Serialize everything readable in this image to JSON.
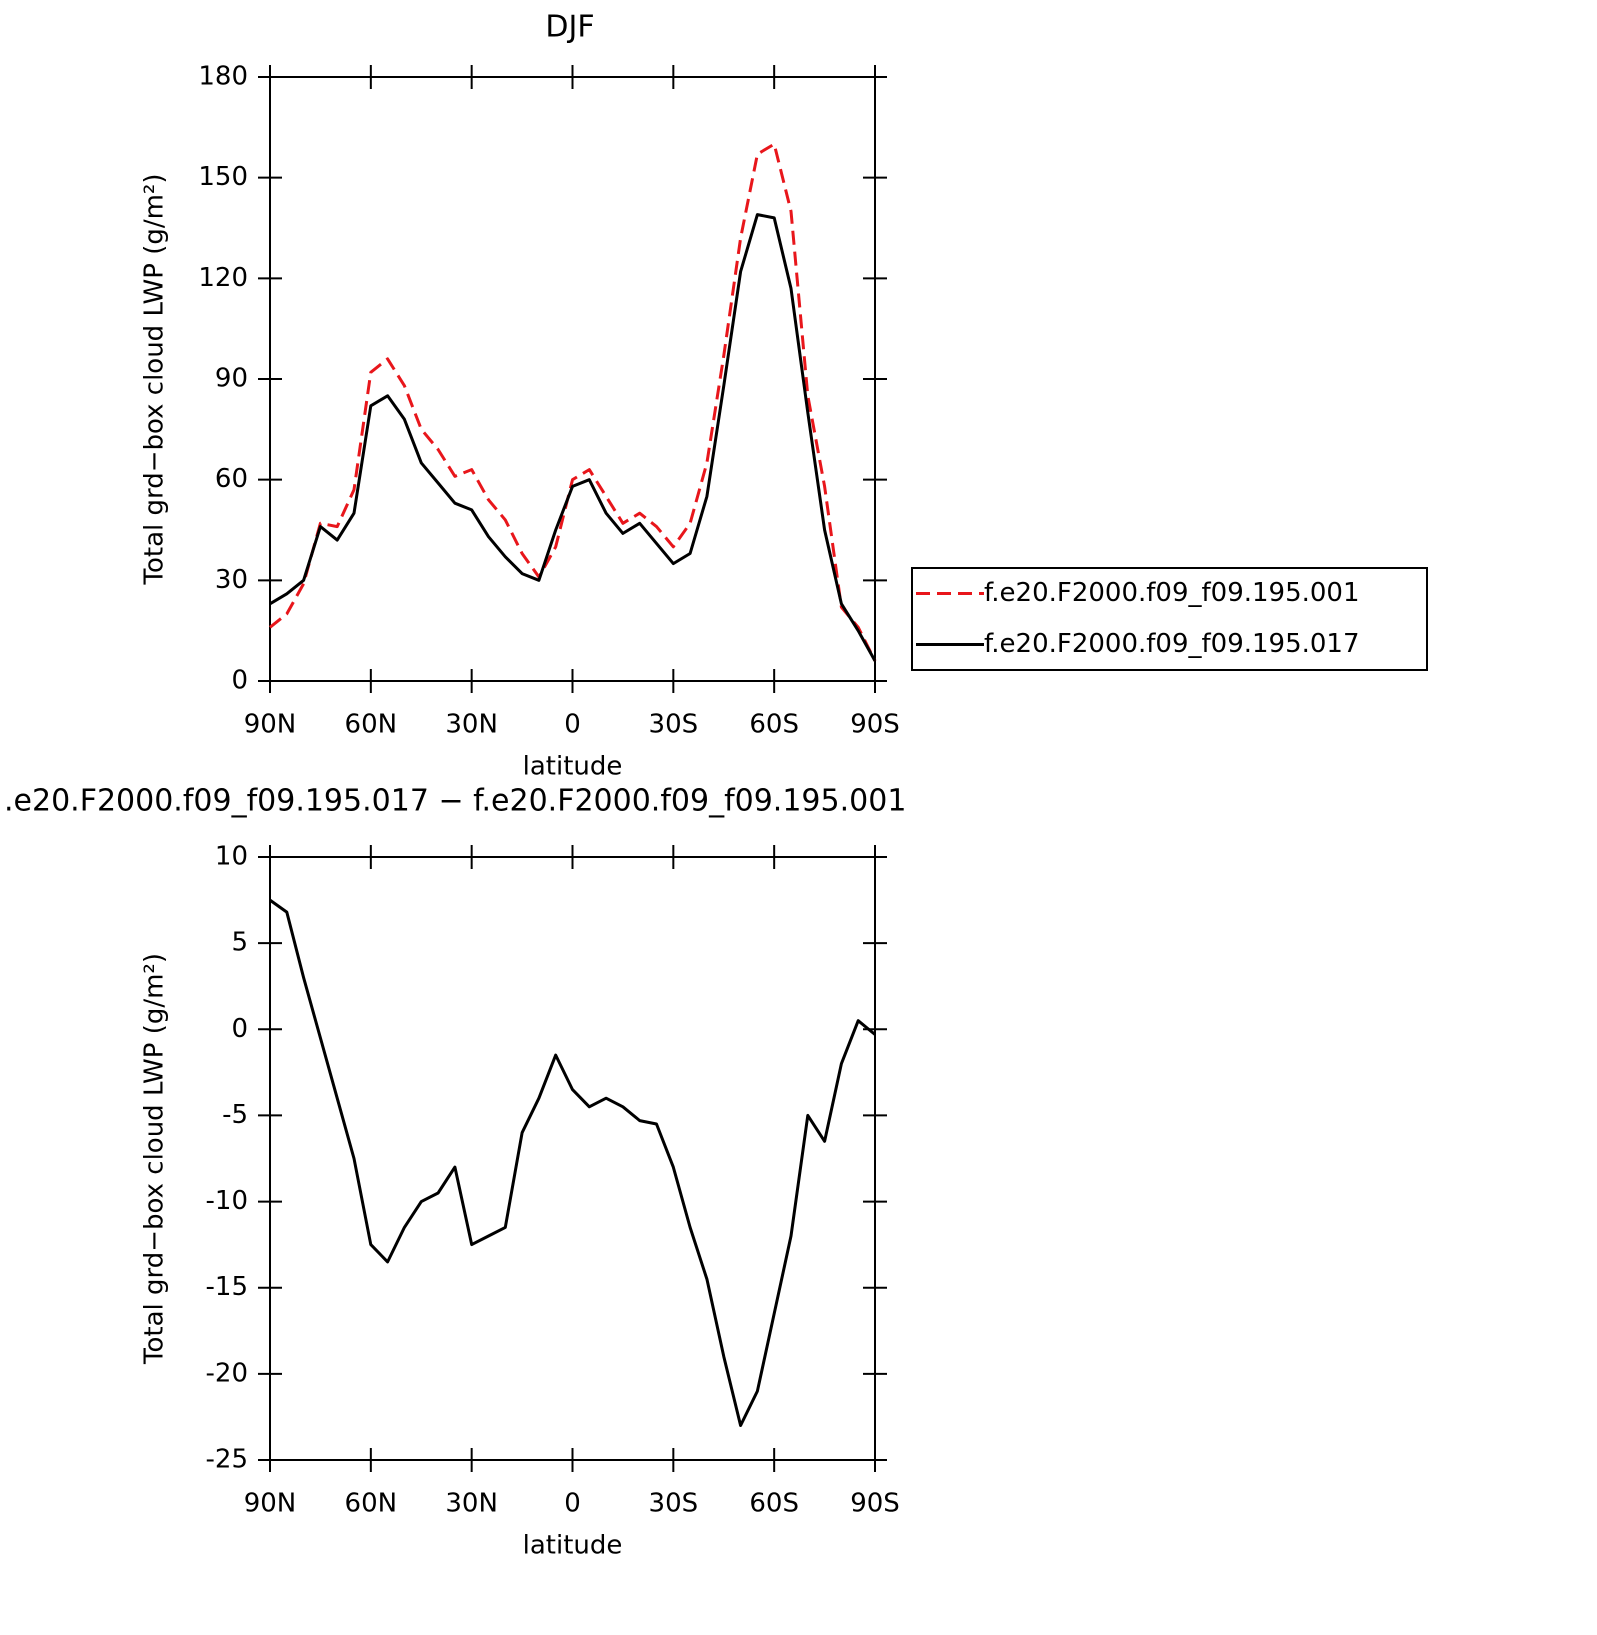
{
  "chart_data": [
    {
      "type": "line",
      "title": "DJF",
      "x_label": "latitude",
      "y_label": "Total grd−box cloud LWP (g/m²)",
      "x": [
        90,
        85,
        80,
        75,
        70,
        65,
        60,
        55,
        50,
        45,
        40,
        35,
        30,
        25,
        20,
        15,
        10,
        5,
        0,
        -5,
        -10,
        -15,
        -20,
        -25,
        -30,
        -35,
        -40,
        -45,
        -50,
        -55,
        -60,
        -65,
        -70,
        -75,
        -80,
        -85,
        -90
      ],
      "series": [
        {
          "name": "f.e20.F2000.f09_f09.195.001",
          "color": "#e8161b",
          "dash": true,
          "values": [
            16,
            20,
            29,
            47,
            46,
            57,
            92,
            96,
            88,
            75,
            69,
            61,
            63,
            54,
            48,
            38,
            31,
            40,
            60,
            63,
            55,
            47,
            50,
            46,
            40,
            47,
            65,
            97,
            132,
            157,
            160,
            140,
            85,
            58,
            22,
            16,
            6
          ]
        },
        {
          "name": "f.e20.F2000.f09_f09.195.017",
          "color": "#000000",
          "dash": false,
          "values": [
            23,
            26,
            30,
            46,
            42,
            50,
            82,
            85,
            78,
            65,
            59,
            53,
            51,
            43,
            37,
            32,
            30,
            45,
            58,
            60,
            50,
            44,
            47,
            41,
            35,
            38,
            55,
            88,
            122,
            139,
            138,
            117,
            80,
            45,
            23,
            15,
            6
          ]
        }
      ],
      "xlim": [
        90,
        -90
      ],
      "xticks": [
        {
          "value": 90,
          "label": "90N"
        },
        {
          "value": 60,
          "label": "60N"
        },
        {
          "value": 30,
          "label": "30N"
        },
        0,
        {
          "value": -30,
          "label": "30S"
        },
        {
          "value": -60,
          "label": "60S"
        },
        {
          "value": -90,
          "label": "90S"
        }
      ],
      "ylim": [
        0,
        180
      ],
      "yticks": [
        0,
        30,
        60,
        90,
        120,
        150,
        180
      ],
      "legend": "right"
    },
    {
      "type": "line",
      "title": ".e20.F2000.f09_f09.195.017 − f.e20.F2000.f09_f09.195.001",
      "x_label": "latitude",
      "y_label": "Total grd−box cloud LWP (g/m²)",
      "x": [
        90,
        85,
        80,
        75,
        70,
        65,
        60,
        55,
        50,
        45,
        40,
        35,
        30,
        25,
        20,
        15,
        10,
        5,
        0,
        -5,
        -10,
        -15,
        -20,
        -25,
        -30,
        -35,
        -40,
        -45,
        -50,
        -55,
        -60,
        -65,
        -70,
        -75,
        -80,
        -85,
        -90
      ],
      "series": [
        {
          "color": "#000000",
          "dash": false,
          "values": [
            7.5,
            6.8,
            3,
            -0.5,
            -4,
            -7.5,
            -12.5,
            -13.5,
            -11.5,
            -10,
            -9.5,
            -8,
            -12.5,
            -12,
            -11.5,
            -6,
            -4,
            -1.5,
            -3.5,
            -4.5,
            -4,
            -4.5,
            -5.3,
            -5.5,
            -8,
            -11.5,
            -14.5,
            -19,
            -23,
            -21,
            -16.5,
            -12,
            -5,
            -6.5,
            -2,
            0.5,
            -0.3
          ]
        }
      ],
      "xlim": [
        90,
        -90
      ],
      "xticks": [
        {
          "value": 90,
          "label": "90N"
        },
        {
          "value": 60,
          "label": "60N"
        },
        {
          "value": 30,
          "label": "30N"
        },
        0,
        {
          "value": -30,
          "label": "30S"
        },
        {
          "value": -60,
          "label": "60S"
        },
        {
          "value": -90,
          "label": "90S"
        }
      ],
      "ylim": [
        -25,
        10
      ],
      "yticks": [
        -25,
        -20,
        -15,
        -10,
        -5,
        0,
        5,
        10
      ]
    }
  ]
}
